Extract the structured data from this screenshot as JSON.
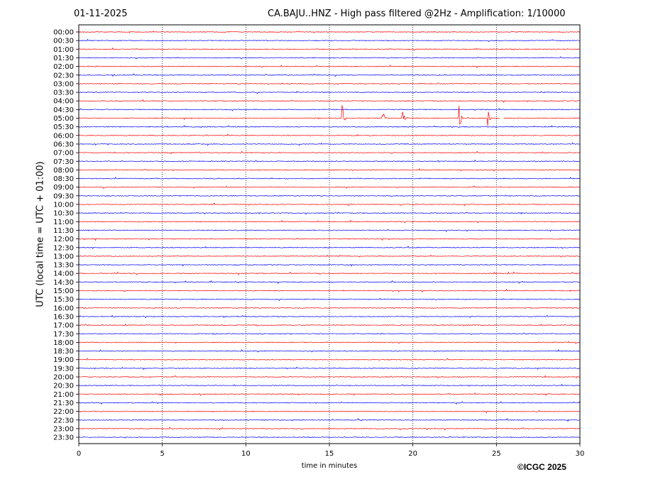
{
  "header": {
    "date": "01-11-2025",
    "title": "CA.BAJU..HNZ - High pass filtered @2Hz - Amplification: 1/10000"
  },
  "footer": {
    "copyright": "©ICGC 2025"
  },
  "chart_data": {
    "type": "line",
    "title": "CA.BAJU..HNZ - High pass filtered @2Hz - Amplification: 1/10000",
    "xlabel": "time in minutes",
    "ylabel": "UTC (local time = UTC + 01:00)",
    "xlim": [
      0,
      30
    ],
    "xticks": [
      0,
      5,
      10,
      15,
      20,
      25,
      30
    ],
    "grid": "vertical dotted at every 5 minutes",
    "colors": [
      "#ff0000",
      "#0000ff"
    ],
    "rows": [
      "00:00",
      "00:30",
      "01:00",
      "01:30",
      "02:00",
      "02:30",
      "03:00",
      "03:30",
      "04:00",
      "04:30",
      "05:00",
      "05:30",
      "06:00",
      "06:30",
      "07:00",
      "07:30",
      "08:00",
      "08:30",
      "09:00",
      "09:30",
      "10:00",
      "10:30",
      "11:00",
      "11:30",
      "12:00",
      "12:30",
      "13:00",
      "13:30",
      "14:00",
      "14:30",
      "15:00",
      "15:30",
      "16:00",
      "16:30",
      "17:00",
      "17:30",
      "18:00",
      "18:30",
      "19:00",
      "19:30",
      "20:00",
      "20:30",
      "21:00",
      "21:30",
      "22:00",
      "22:30",
      "23:00",
      "23:30"
    ],
    "events": [
      {
        "row": "05:00",
        "minute": 15.8,
        "amplitude": 1.7
      },
      {
        "row": "05:00",
        "minute": 18.2,
        "amplitude": 1.3
      },
      {
        "row": "05:00",
        "minute": 19.4,
        "amplitude": 1.3
      },
      {
        "row": "05:00",
        "minute": 22.8,
        "amplitude": 1.7
      },
      {
        "row": "05:00",
        "minute": 24.5,
        "amplitude": 1.7
      }
    ],
    "gap": {
      "row": "05:00",
      "from_minute": 25.2,
      "to_minute": 25.4
    }
  }
}
